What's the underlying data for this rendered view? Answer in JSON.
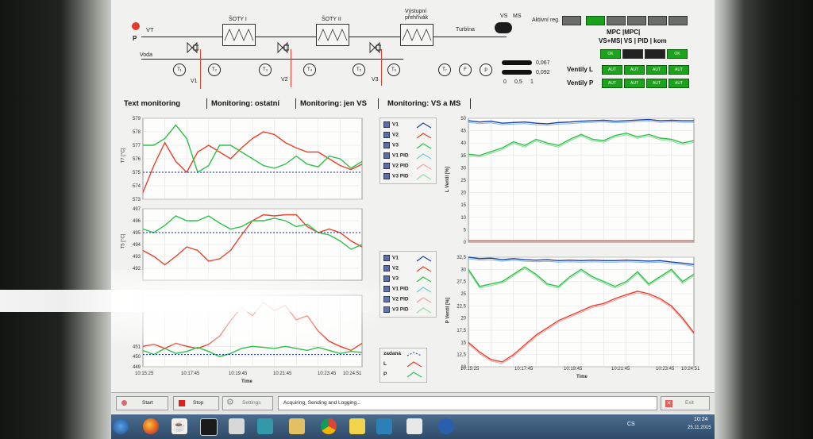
{
  "schematic": {
    "vt_label": "VT",
    "p_label": "P",
    "voda_label": "Voda",
    "sotyI_label": "ŠOTY I",
    "sotyII_label": "ŠOTY II",
    "vystupni_label": "Výstupní\npřehřívák",
    "turbina_label": "Turbína",
    "valves": [
      "V1",
      "V2",
      "V3"
    ],
    "sensors": [
      "T₁",
      "T₂",
      "T₃",
      "T₄",
      "T₅",
      "T₆",
      "T₇",
      "F",
      "p"
    ],
    "vs_label": "VS",
    "ms_label": "MS",
    "aktivni_reg_label": "Aktivní reg.",
    "bar1_value": "0,067",
    "bar2_value": "0,092",
    "scale_ticks": [
      "0",
      "0,5",
      "1"
    ]
  },
  "control_panel": {
    "header_line1": "MPC  |MPC|",
    "header_line2": "VS+MS| VS  | PID  | kom",
    "ok1": "OK",
    "ok2": "OK",
    "ventily_l_label": "Ventily L",
    "ventily_p_label": "Ventily P",
    "aut_labels": [
      "AUT",
      "AUT",
      "AUT",
      "AUT"
    ]
  },
  "tabs": [
    {
      "label": "Text monitoring"
    },
    {
      "label": "Monitoring: ostatní"
    },
    {
      "label": "Monitoring: jen VS"
    },
    {
      "label": "Monitoring: VS a MS"
    }
  ],
  "legend_top": [
    "V1",
    "V2",
    "V3",
    "V1 PID",
    "V2 PID",
    "V3 PID"
  ],
  "legend_mid": [
    "V1",
    "V2",
    "V3",
    "V1 PID",
    "V2 PID",
    "V3 PID"
  ],
  "legend_bottom": [
    "zadaná",
    "L",
    "P"
  ],
  "x_ticks": [
    "10:15:25",
    "10:17:45",
    "10:19:45",
    "10:21:45",
    "10:23:45",
    "10:24:51"
  ],
  "x_label": "Time",
  "bottombar": {
    "start_label": "Start",
    "stop_label": "Stop",
    "settings_label": "Settings",
    "status_text": "Acquiring, Sending and Logging...",
    "exit_label": "Exit"
  },
  "clock": {
    "time": "10:24",
    "date": "25.11.2015"
  },
  "tray_lang": "CS",
  "colors": {
    "red": "#e8412c",
    "green": "#2cc24a",
    "blue": "#1b3fa8",
    "navy": "#0e2f8c"
  },
  "chart_data": [
    {
      "type": "line",
      "ylabel": "T7 [°C]",
      "ylim": [
        573,
        579
      ],
      "yticks": [
        "579",
        "578",
        "577",
        "576",
        "575",
        "574",
        "573"
      ],
      "x": [
        0,
        0.05,
        0.1,
        0.15,
        0.2,
        0.25,
        0.3,
        0.35,
        0.4,
        0.45,
        0.5,
        0.55,
        0.6,
        0.65,
        0.7,
        0.75,
        0.8,
        0.85,
        0.9,
        0.95,
        1.0
      ],
      "series": [
        {
          "name": "V1",
          "values": [
            573.5,
            575.5,
            577.2,
            575.8,
            575.0,
            576.5,
            577.0,
            576.5,
            576.0,
            576.8,
            577.5,
            578.0,
            577.8,
            577.2,
            576.8,
            576.5,
            576.5,
            576.0,
            575.5,
            575.2,
            575.6
          ]
        },
        {
          "name": "V2",
          "values": [
            577.0,
            577.0,
            577.5,
            578.5,
            577.5,
            575.0,
            575.5,
            577.0,
            577.0,
            576.5,
            576.0,
            575.5,
            575.3,
            575.6,
            576.2,
            575.6,
            575.4,
            576.2,
            576.0,
            575.3,
            575.8
          ]
        },
        {
          "name": "zadaná",
          "values": [
            575.0,
            575.0,
            575.0,
            575.0,
            575.0,
            575.0,
            575.0,
            575.0,
            575.0,
            575.0,
            575.0,
            575.0,
            575.0,
            575.0,
            575.0,
            575.0,
            575.0,
            575.0,
            575.0,
            575.0,
            575.0
          ]
        }
      ]
    },
    {
      "type": "line",
      "ylabel": "T5 [°C]",
      "ylim": [
        491,
        497
      ],
      "yticks": [
        "497",
        "496",
        "495",
        "494",
        "493",
        "492"
      ],
      "x": [
        0,
        0.05,
        0.1,
        0.15,
        0.2,
        0.25,
        0.3,
        0.35,
        0.4,
        0.45,
        0.5,
        0.55,
        0.6,
        0.65,
        0.7,
        0.75,
        0.8,
        0.85,
        0.9,
        0.95,
        1.0
      ],
      "series": [
        {
          "name": "V1",
          "values": [
            493.5,
            493.0,
            492.3,
            493.0,
            493.8,
            493.5,
            492.6,
            492.8,
            493.5,
            494.8,
            496.0,
            496.5,
            496.4,
            496.5,
            496.5,
            495.5,
            495.0,
            495.3,
            495.0,
            494.3,
            493.8
          ]
        },
        {
          "name": "V2",
          "values": [
            495.3,
            495.0,
            495.6,
            496.4,
            496.0,
            496.0,
            496.4,
            495.8,
            495.3,
            495.5,
            496.0,
            496.0,
            496.2,
            496.0,
            495.5,
            495.7,
            495.0,
            494.8,
            494.3,
            493.6,
            494.0
          ]
        },
        {
          "name": "zadaná",
          "values": [
            495.0,
            495.0,
            495.0,
            495.0,
            495.0,
            495.0,
            495.0,
            495.0,
            495.0,
            495.0,
            495.0,
            495.0,
            495.0,
            495.0,
            495.0,
            495.0,
            495.0,
            495.0,
            495.0,
            495.0,
            495.0
          ]
        }
      ]
    },
    {
      "type": "line",
      "ylabel": "",
      "ylim": [
        449,
        456
      ],
      "yticks": [
        "451",
        "450",
        "449"
      ],
      "x": [
        0,
        0.05,
        0.1,
        0.15,
        0.2,
        0.25,
        0.3,
        0.35,
        0.4,
        0.45,
        0.5,
        0.55,
        0.6,
        0.65,
        0.7,
        0.75,
        0.8,
        0.85,
        0.9,
        0.95,
        1.0
      ],
      "series": [
        {
          "name": "V1",
          "values": [
            451.0,
            451.2,
            450.8,
            451.3,
            451.0,
            450.8,
            451.2,
            452.0,
            453.5,
            454.8,
            454.0,
            455.3,
            454.5,
            455.0,
            453.6,
            454.0,
            452.5,
            451.5,
            451.0,
            450.6,
            451.3
          ]
        },
        {
          "name": "V2",
          "values": [
            450.6,
            450.2,
            450.8,
            450.3,
            450.5,
            450.9,
            450.5,
            450.0,
            450.3,
            450.8,
            451.0,
            450.9,
            450.8,
            451.0,
            450.8,
            450.6,
            450.9,
            450.6,
            450.3,
            450.5,
            450.4
          ]
        },
        {
          "name": "zadaná",
          "values": [
            450.2,
            450.2,
            450.2,
            450.2,
            450.2,
            450.2,
            450.2,
            450.2,
            450.2,
            450.2,
            450.2,
            450.2,
            450.2,
            450.2,
            450.2,
            450.2,
            450.2,
            450.2,
            450.2,
            450.2,
            450.2
          ]
        }
      ]
    },
    {
      "type": "line",
      "ylabel": "L Ventil [%]",
      "ylim": [
        0,
        50
      ],
      "yticks": [
        "50",
        "45",
        "40",
        "35",
        "30",
        "25",
        "20",
        "15",
        "10",
        "5",
        "0"
      ],
      "x": [
        0,
        0.05,
        0.1,
        0.15,
        0.2,
        0.25,
        0.3,
        0.35,
        0.4,
        0.45,
        0.5,
        0.55,
        0.6,
        0.65,
        0.7,
        0.75,
        0.8,
        0.85,
        0.9,
        0.95,
        1.0
      ],
      "series": [
        {
          "name": "V1",
          "values": [
            49.0,
            48.5,
            48.8,
            48.0,
            48.3,
            48.5,
            48.0,
            47.8,
            48.3,
            48.5,
            48.8,
            49.0,
            49.2,
            48.8,
            49.0,
            49.3,
            49.5,
            49.0,
            49.2,
            49.0,
            49.0
          ]
        },
        {
          "name": "V2",
          "values": [
            35.5,
            35.0,
            36.5,
            38.0,
            40.5,
            39.0,
            41.5,
            40.0,
            39.0,
            41.5,
            43.5,
            41.5,
            41.0,
            43.0,
            44.0,
            42.5,
            43.5,
            42.0,
            41.5,
            40.0,
            41.0
          ]
        },
        {
          "name": "V3",
          "values": [
            0.5,
            0.5,
            0.5,
            0.5,
            0.5,
            0.5,
            0.5,
            0.5,
            0.5,
            0.5,
            0.5,
            0.5,
            0.5,
            0.5,
            0.5,
            0.5,
            0.5,
            0.5,
            0.5,
            0.5,
            0.5
          ]
        }
      ]
    },
    {
      "type": "line",
      "ylabel": "P Ventil [%]",
      "ylim": [
        10,
        32.5
      ],
      "yticks": [
        "32,5",
        "30",
        "27,5",
        "25",
        "22,5",
        "20",
        "17,5",
        "15",
        "12,5",
        "10"
      ],
      "x": [
        0,
        0.05,
        0.1,
        0.15,
        0.2,
        0.25,
        0.3,
        0.35,
        0.4,
        0.45,
        0.5,
        0.55,
        0.6,
        0.65,
        0.7,
        0.75,
        0.8,
        0.85,
        0.9,
        0.95,
        1.0
      ],
      "series": [
        {
          "name": "V1",
          "values": [
            32.5,
            32.2,
            32.3,
            32.0,
            32.2,
            32.0,
            31.9,
            32.0,
            31.8,
            31.9,
            31.8,
            31.9,
            31.8,
            31.8,
            31.9,
            31.8,
            31.7,
            31.8,
            31.5,
            31.3,
            31.0
          ]
        },
        {
          "name": "V2",
          "values": [
            30.0,
            26.5,
            27.0,
            27.5,
            29.0,
            30.5,
            29.0,
            27.0,
            26.5,
            28.5,
            30.0,
            28.5,
            27.5,
            26.5,
            27.5,
            29.5,
            27.0,
            28.5,
            30.0,
            27.5,
            29.0
          ]
        },
        {
          "name": "V3",
          "values": [
            15.0,
            13.0,
            11.5,
            11.0,
            12.5,
            14.5,
            16.5,
            18.0,
            19.5,
            20.5,
            21.5,
            22.5,
            23.0,
            24.0,
            24.8,
            25.5,
            25.0,
            24.0,
            22.5,
            20.0,
            17.0
          ]
        }
      ]
    }
  ]
}
